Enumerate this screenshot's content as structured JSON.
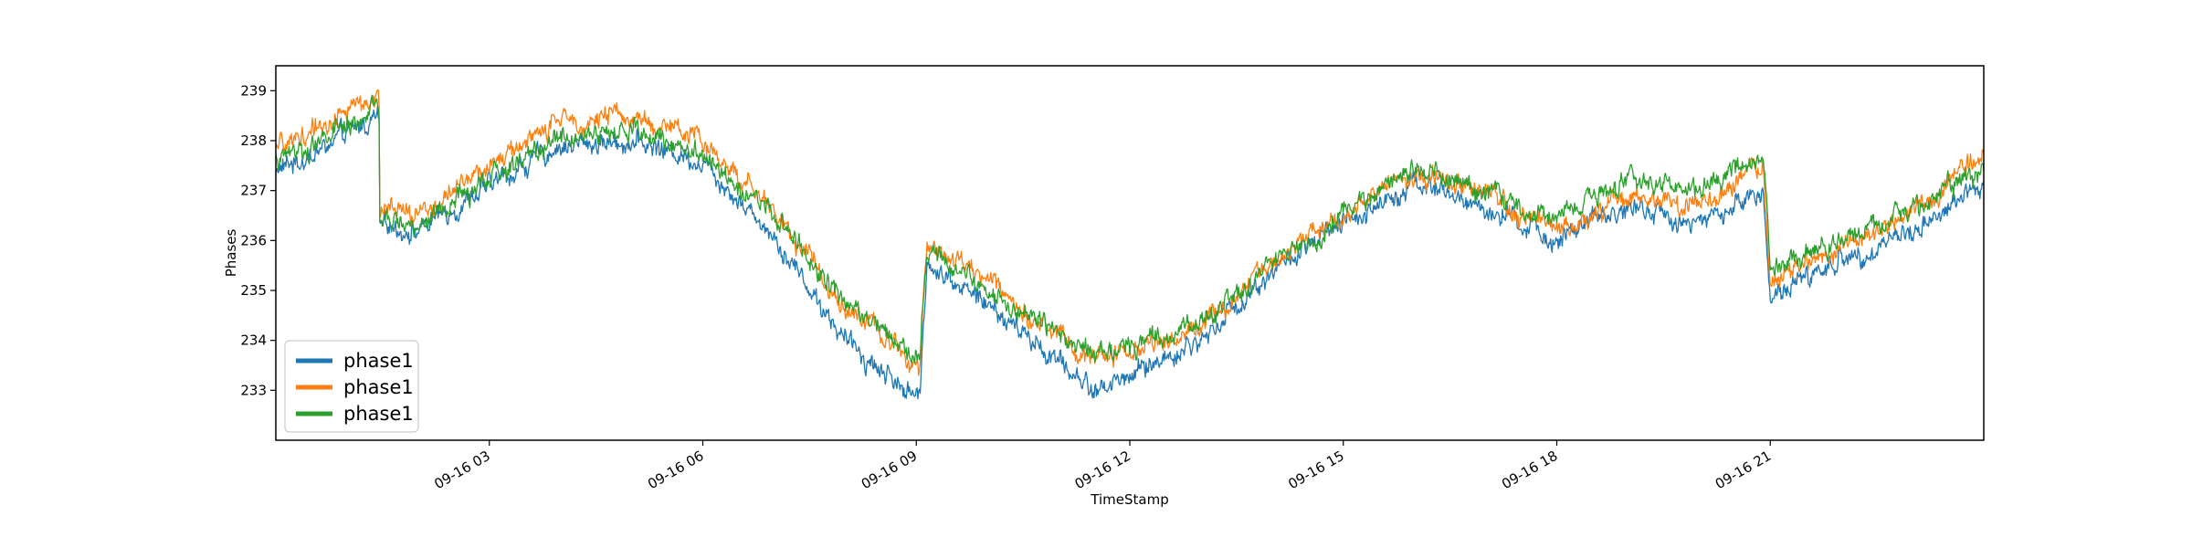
{
  "chart_data": {
    "type": "line",
    "title": "",
    "xlabel": "TimeStamp",
    "ylabel": "Phases",
    "xlim": [
      "09-16 00:00",
      "24:00"
    ],
    "ylim": [
      232.0,
      239.5
    ],
    "grid": false,
    "legend": {
      "placement": "lower-left",
      "entries": [
        "phase1",
        "phase1",
        "phase1"
      ]
    },
    "yticks": [
      {
        "value": 233,
        "label": "233"
      },
      {
        "value": 234,
        "label": "234"
      },
      {
        "value": 235,
        "label": "235"
      },
      {
        "value": 236,
        "label": "236"
      },
      {
        "value": 237,
        "label": "237"
      },
      {
        "value": 238,
        "label": "238"
      },
      {
        "value": 239,
        "label": "239"
      }
    ],
    "xticks": [
      {
        "hour": 3,
        "label": "09-16 03"
      },
      {
        "hour": 6,
        "label": "09-16 06"
      },
      {
        "hour": 9,
        "label": "09-16 09"
      },
      {
        "hour": 12,
        "label": "09-16 12"
      },
      {
        "hour": 15,
        "label": "09-16 15"
      },
      {
        "hour": 18,
        "label": "09-16 18"
      },
      {
        "hour": 21,
        "label": "09-16 21"
      }
    ],
    "series": [
      {
        "name": "phase1",
        "color": "#1f77b4",
        "hours": [
          0,
          0.5,
          1,
          1.45,
          1.46,
          2,
          3,
          4,
          5,
          6,
          7,
          8,
          9.05,
          9.15,
          10,
          11.5,
          12,
          13,
          14,
          15,
          16,
          17,
          18,
          19,
          20,
          20.9,
          21,
          22,
          23,
          24
        ],
        "values": [
          237.4,
          237.7,
          238.1,
          238.5,
          236.3,
          236.2,
          237.1,
          237.9,
          238.0,
          237.6,
          236.1,
          234.0,
          232.8,
          235.6,
          234.7,
          233.0,
          233.3,
          234.0,
          235.4,
          236.3,
          237.2,
          236.6,
          236.0,
          236.7,
          236.3,
          237.0,
          234.9,
          235.6,
          236.2,
          237.1
        ]
      },
      {
        "name": "phase1",
        "color": "#ff7f0e",
        "hours": [
          0,
          0.5,
          1,
          1.45,
          1.46,
          2,
          3,
          4,
          5,
          6,
          7,
          8,
          9.05,
          9.15,
          10,
          11.5,
          12,
          13,
          14,
          15,
          16,
          17,
          18,
          19,
          20,
          20.9,
          21,
          22,
          23,
          24
        ],
        "values": [
          237.8,
          238.2,
          238.6,
          238.9,
          236.6,
          236.5,
          237.5,
          238.4,
          238.5,
          238.0,
          236.6,
          234.7,
          233.5,
          236.0,
          235.2,
          233.6,
          233.8,
          234.3,
          235.6,
          236.5,
          237.4,
          236.9,
          236.2,
          236.9,
          236.7,
          237.4,
          235.1,
          235.9,
          236.5,
          237.7
        ]
      },
      {
        "name": "phase1",
        "color": "#2ca02c",
        "hours": [
          0,
          0.5,
          1,
          1.45,
          1.46,
          2,
          3,
          4,
          5,
          6,
          7,
          8,
          9.05,
          9.15,
          10,
          11.5,
          12,
          13,
          14,
          15,
          16,
          17,
          18,
          19,
          20,
          20.9,
          21,
          22,
          23,
          24
        ],
        "values": [
          237.6,
          237.9,
          238.3,
          238.6,
          236.4,
          236.3,
          237.2,
          238.1,
          238.2,
          237.8,
          236.5,
          234.8,
          233.7,
          235.8,
          235.0,
          233.7,
          233.9,
          234.4,
          235.5,
          236.5,
          237.5,
          236.9,
          236.5,
          237.2,
          237.0,
          237.7,
          235.3,
          236.0,
          236.6,
          237.4
        ]
      }
    ]
  }
}
